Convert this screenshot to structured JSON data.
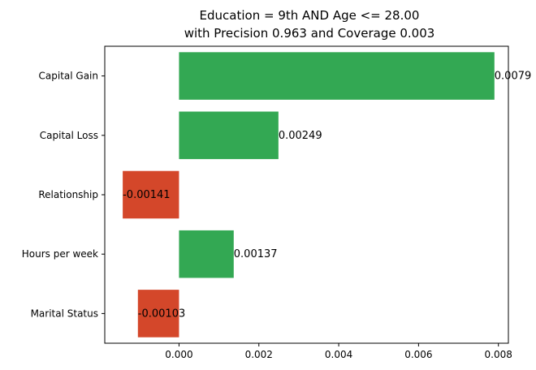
{
  "chart_data": {
    "type": "bar",
    "orientation": "horizontal",
    "title": [
      "Education = 9th AND Age <= 28.00",
      "with Precision 0.963 and Coverage 0.003"
    ],
    "xlabel": "",
    "ylabel": "",
    "categories": [
      "Capital Gain",
      "Capital Loss",
      "Relationship",
      "Hours per week",
      "Marital Status"
    ],
    "values": [
      0.0079,
      0.00249,
      -0.00141,
      0.00137,
      -0.00103
    ],
    "value_labels": [
      "0.0079",
      "0.00249",
      "-0.00141",
      "0.00137",
      "-0.00103"
    ],
    "xlim": [
      -0.00186,
      0.00825
    ],
    "xticks": [
      0.0,
      0.002,
      0.004,
      0.006,
      0.008
    ],
    "xtick_labels": [
      "0.000",
      "0.002",
      "0.004",
      "0.006",
      "0.008"
    ],
    "colors": {
      "positive": "#33a853",
      "negative": "#d4472a"
    },
    "grid": false,
    "legend": "none"
  }
}
